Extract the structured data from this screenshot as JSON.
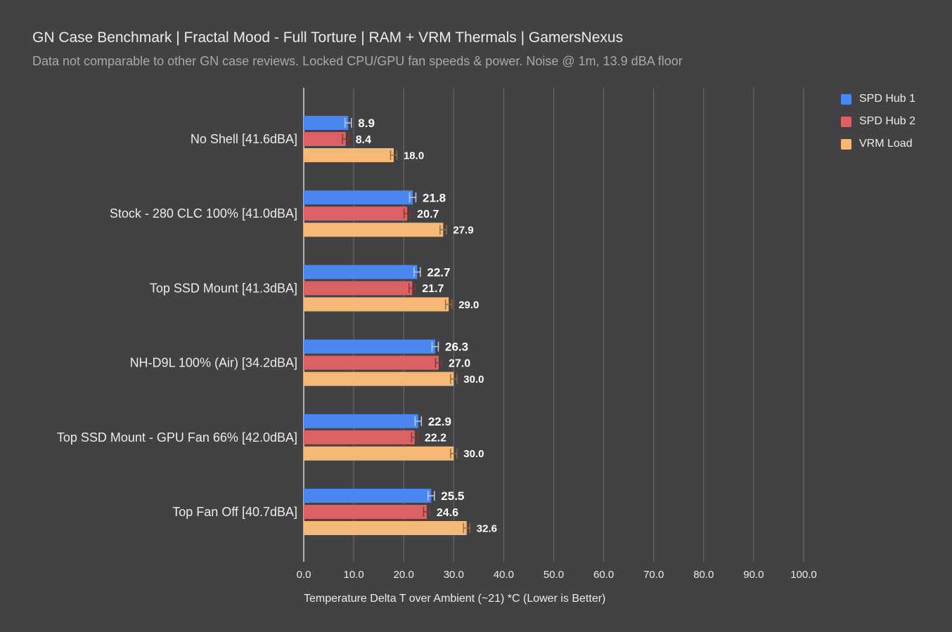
{
  "chart_data": {
    "type": "bar",
    "orientation": "horizontal",
    "title": "GN Case Benchmark | Fractal Mood - Full Torture | RAM + VRM Thermals | GamersNexus",
    "subtitle": "Data not comparable to other GN case reviews. Locked CPU/GPU fan speeds & power. Noise @ 1m, 13.9 dBA floor",
    "xlabel": "Temperature Delta T over Ambient (~21) *C (Lower is Better)",
    "ylabel": "",
    "xlim": [
      0,
      100
    ],
    "ticks": [
      "0.0",
      "10.0",
      "20.0",
      "30.0",
      "40.0",
      "50.0",
      "60.0",
      "70.0",
      "80.0",
      "90.0",
      "100.0"
    ],
    "grid": true,
    "legend_position": "top-right",
    "categories": [
      "No Shell [41.6dBA]",
      "Stock - 280 CLC 100% [41.0dBA]",
      "Top SSD Mount [41.3dBA]",
      "NH-D9L 100% (Air) [34.2dBA]",
      "Top SSD Mount - GPU Fan 66% [42.0dBA]",
      "Top Fan Off [40.7dBA]"
    ],
    "series": [
      {
        "name": "SPD Hub 1",
        "color": "#4a87f0",
        "error_color": "#b6cdf7",
        "values": [
          8.9,
          21.8,
          22.7,
          26.3,
          22.9,
          25.5
        ],
        "labels": [
          "8.9",
          "21.8",
          "22.7",
          "26.3",
          "22.9",
          "25.5"
        ]
      },
      {
        "name": "SPD Hub 2",
        "color": "#db6165",
        "error_color": "#8a3336",
        "values": [
          8.4,
          20.7,
          21.7,
          27.0,
          22.2,
          24.6
        ],
        "labels": [
          "8.4",
          "20.7",
          "21.7",
          "27.0",
          "22.2",
          "24.6"
        ]
      },
      {
        "name": "VRM Load",
        "color": "#f5b876",
        "error_color": "#9a6a3a",
        "values": [
          18.0,
          27.9,
          29.0,
          30.0,
          30.0,
          32.6
        ],
        "labels": [
          "18.0",
          "27.9",
          "29.0",
          "30.0",
          "30.0",
          "32.6"
        ]
      }
    ]
  },
  "colors": {
    "background": "#424143",
    "gridline": "#6e6d70",
    "axis": "#d8d8d8",
    "text": "#ececec",
    "subtitle": "#a9a9a9"
  }
}
